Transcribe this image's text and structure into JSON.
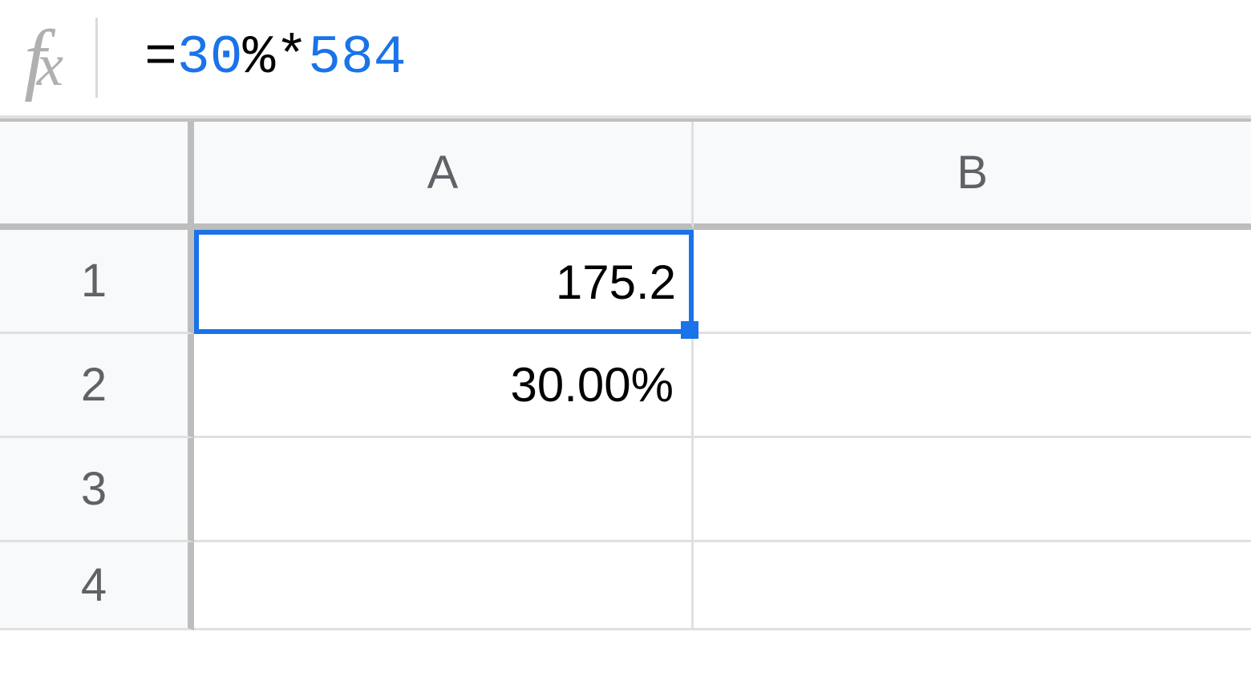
{
  "formula_bar": {
    "equals": "=",
    "num1": "30",
    "pct": "%",
    "star": "*",
    "num2": "584"
  },
  "columns": {
    "A": "A",
    "B": "B"
  },
  "rows": {
    "1": "1",
    "2": "2",
    "3": "3",
    "4": "4"
  },
  "cells": {
    "A1": "175.2",
    "A2": "30.00%",
    "A3": "",
    "A4": "",
    "B1": "",
    "B2": "",
    "B3": "",
    "B4": ""
  },
  "selected_cell": "A1",
  "colors": {
    "selection_border": "#1a73e8",
    "formula_number": "#1a73e8",
    "header_bg": "#f8f9fa",
    "header_text": "#5f6368",
    "grid_line": "#e0e0e0",
    "header_border": "#bdbdbd",
    "cell_text": "#000000"
  }
}
